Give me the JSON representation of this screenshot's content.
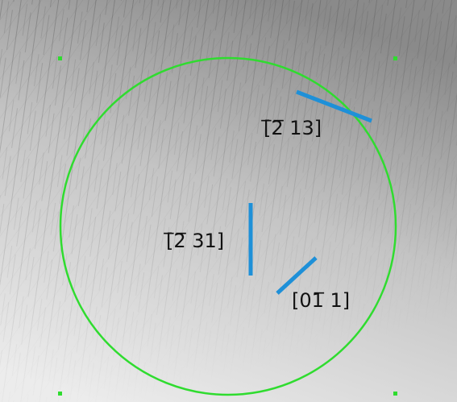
{
  "annotations": [
    {
      "label": "[̅2̅ 13]"
    },
    {
      "label": "[̅2̅ 31]"
    },
    {
      "label": "[01̅ 1]"
    }
  ]
}
